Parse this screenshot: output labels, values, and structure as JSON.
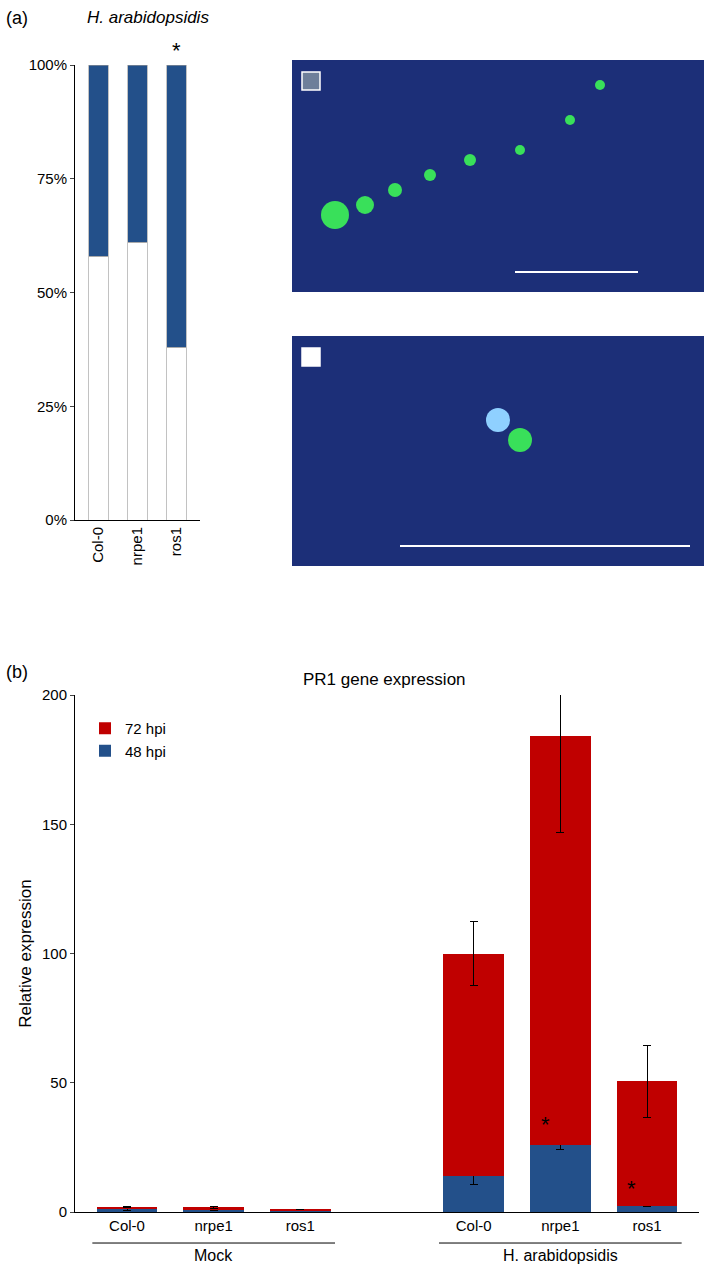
{
  "chart_data": [
    {
      "type": "bar",
      "panel": "(a)",
      "title": "H. arabidopsidis",
      "categories": [
        "Col-0",
        "nrpe1",
        "ros1"
      ],
      "stacked": true,
      "series": [
        {
          "color": "#ffffff",
          "values": [
            58,
            61,
            38
          ]
        },
        {
          "color": "#23508a",
          "values": [
            42,
            39,
            62
          ]
        }
      ],
      "ylim": [
        0,
        100
      ],
      "yticks": [
        {
          "value": 0,
          "label": "0%"
        },
        {
          "value": 25,
          "label": "25%"
        },
        {
          "value": 50,
          "label": "50%"
        },
        {
          "value": 75,
          "label": "75%"
        },
        {
          "value": 100,
          "label": "100%"
        }
      ],
      "annotations": [
        {
          "text": "*",
          "at": 2
        }
      ]
    },
    {
      "type": "bar",
      "panel": "(b)",
      "title": "PR1 gene expression",
      "y_label": "Relative expression",
      "categories": [
        "Col-0",
        "nrpe1",
        "ros1",
        null,
        "Col-0",
        "nrpe1",
        "ros1"
      ],
      "groups": [
        {
          "label": "Mock",
          "span": [
            0,
            2
          ]
        },
        {
          "label": "H. arabidopsidis",
          "span": [
            4,
            6
          ]
        }
      ],
      "legend": "top left",
      "series": [
        {
          "name": "48 hpi",
          "color": "#23508a",
          "values": [
            1,
            0.8,
            0.5,
            null,
            14,
            26,
            2.5
          ],
          "error": [
            0.3,
            0.2,
            0.1,
            null,
            3.5,
            2,
            0.5
          ]
        },
        {
          "name": "72 hpi",
          "color": "#c00000",
          "values": [
            1,
            1,
            0.5,
            null,
            86,
            158,
            48
          ],
          "error": [
            0.3,
            0.3,
            0.1,
            null,
            12.5,
            37,
            14
          ]
        }
      ],
      "ylim": [
        0,
        200
      ],
      "yticks": [
        0,
        50,
        100,
        150,
        200
      ],
      "annotations": [
        {
          "text": "*",
          "at": 5,
          "series": "48 hpi"
        },
        {
          "text": "*",
          "at": 6,
          "series": "48 hpi"
        }
      ]
    }
  ]
}
